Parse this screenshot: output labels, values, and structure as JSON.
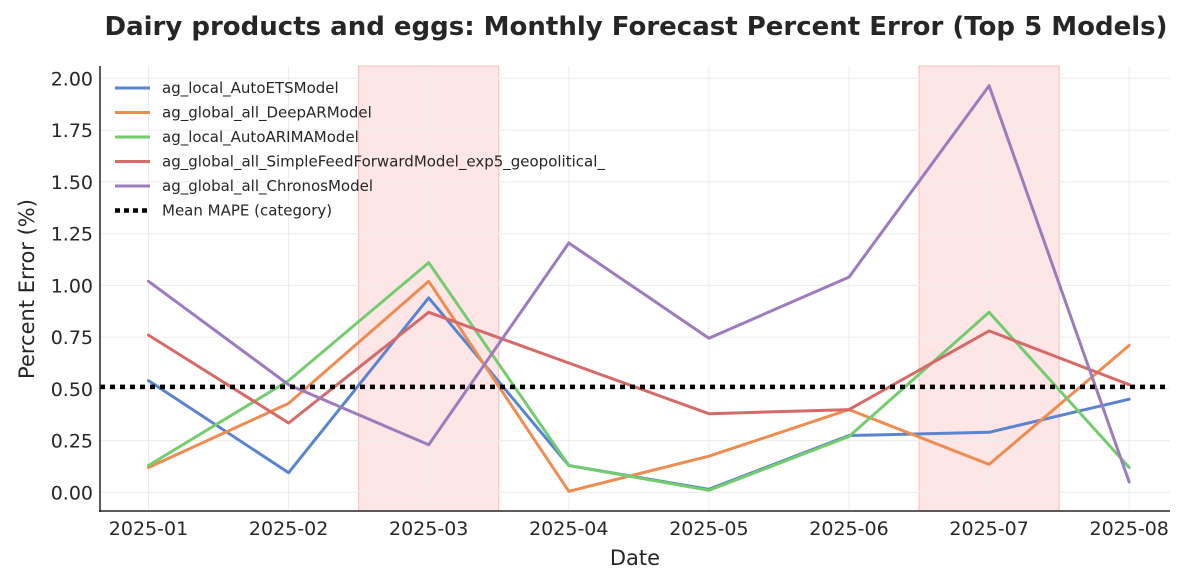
{
  "chart_data": {
    "type": "line",
    "title": "Dairy products and eggs: Monthly Forecast Percent Error (Top 5 Models)",
    "xlabel": "Date",
    "ylabel": "Percent Error (%)",
    "x": [
      "2025-01",
      "2025-02",
      "2025-03",
      "2025-04",
      "2025-05",
      "2025-06",
      "2025-07",
      "2025-08"
    ],
    "ylim": [
      -0.09,
      2.06
    ],
    "yticks": [
      0.0,
      0.25,
      0.5,
      0.75,
      1.0,
      1.25,
      1.5,
      1.75,
      2.0
    ],
    "ytick_labels": [
      "0.00",
      "0.25",
      "0.50",
      "0.75",
      "1.00",
      "1.25",
      "1.50",
      "1.75",
      "2.00"
    ],
    "grid": true,
    "legend_position": "top-left",
    "highlight_bands": [
      {
        "from": "2025-03",
        "to": "2025-03",
        "color": "#ffe6e6"
      },
      {
        "from": "2025-07",
        "to": "2025-07",
        "color": "#ffe6e6"
      }
    ],
    "series": [
      {
        "name": "ag_local_AutoETSModel",
        "color": "#5a84cf",
        "values": [
          0.54,
          0.095,
          0.94,
          0.13,
          0.015,
          0.275,
          0.29,
          0.45
        ]
      },
      {
        "name": "ag_global_all_DeepARModel",
        "color": "#ee8c52",
        "values": [
          0.12,
          0.43,
          1.02,
          0.005,
          0.175,
          0.4,
          0.135,
          0.71
        ]
      },
      {
        "name": "ag_local_AutoARIMAModel",
        "color": "#74cc6e",
        "values": [
          0.13,
          0.54,
          1.11,
          0.13,
          0.01,
          0.27,
          0.87,
          0.12
        ]
      },
      {
        "name": "ag_global_all_SimpleFeedForwardModel_exp5_geopolitical_",
        "color": "#d56a68",
        "values": [
          0.76,
          0.335,
          0.87,
          0.625,
          0.38,
          0.4,
          0.78,
          0.52
        ]
      },
      {
        "name": "ag_global_all_ChronosModel",
        "color": "#9c7cbc",
        "values": [
          1.02,
          0.52,
          0.23,
          1.205,
          0.745,
          1.04,
          1.965,
          0.05
        ]
      }
    ],
    "reference_line": {
      "name": "Mean MAPE (category)",
      "value": 0.51,
      "color": "#000000"
    }
  }
}
